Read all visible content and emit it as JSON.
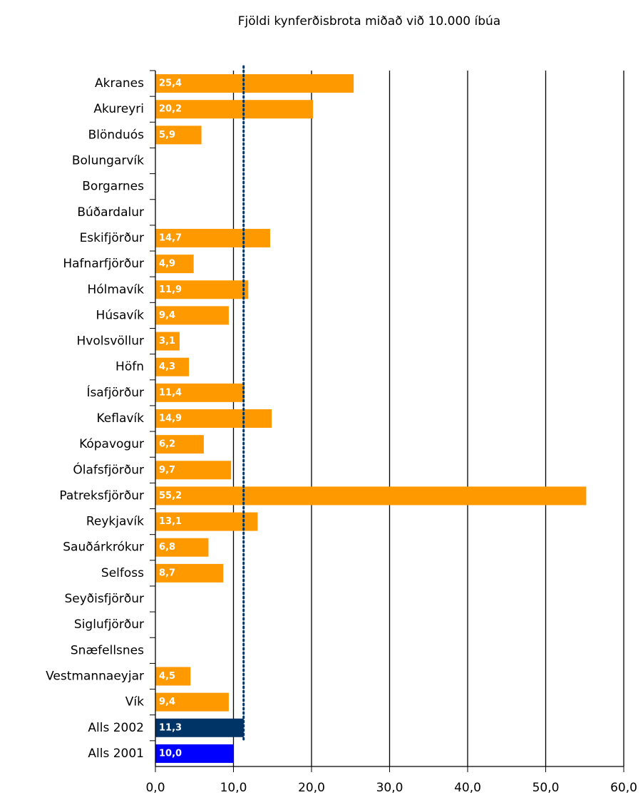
{
  "chart_data": {
    "type": "hbar",
    "title": "Fjöldi kynferðisbrota miðað við 10.000 íbúa",
    "categories": [
      "Akranes",
      "Akureyri",
      "Blönduós",
      "Bolungarvík",
      "Borgarnes",
      "Búðardalur",
      "Eskifjörður",
      "Hafnarfjörður",
      "Hólmavík",
      "Húsavík",
      "Hvolsvöllur",
      "Höfn",
      "Ísafjörður",
      "Keflavík",
      "Kópavogur",
      "Ólafsfjörður",
      "Patreksfjörður",
      "Reykjavík",
      "Sauðárkrókur",
      "Selfoss",
      "Seyðisfjörður",
      "Siglufjörður",
      "Snæfellsnes",
      "Vestmannaeyjar",
      "Vík",
      "Alls 2002",
      "Alls 2001"
    ],
    "values": [
      25.4,
      20.2,
      5.9,
      null,
      null,
      null,
      14.7,
      4.9,
      11.9,
      9.4,
      3.1,
      4.3,
      11.4,
      14.9,
      6.2,
      9.7,
      55.2,
      13.1,
      6.8,
      8.7,
      null,
      null,
      null,
      4.5,
      9.4,
      11.3,
      10.0
    ],
    "value_labels": [
      "25,4",
      "20,2",
      "5,9",
      null,
      null,
      null,
      "14,7",
      "4,9",
      "11,9",
      "9,4",
      "3,1",
      "4,3",
      "11,4",
      "14,9",
      "6,2",
      "9,7",
      "55,2",
      "13,1",
      "6,8",
      "8,7",
      null,
      null,
      null,
      "4,5",
      "9,4",
      "11,3",
      "10,0"
    ],
    "colors": [
      "#ff9900",
      "#ff9900",
      "#ff9900",
      "#ff9900",
      "#ff9900",
      "#ff9900",
      "#ff9900",
      "#ff9900",
      "#ff9900",
      "#ff9900",
      "#ff9900",
      "#ff9900",
      "#ff9900",
      "#ff9900",
      "#ff9900",
      "#ff9900",
      "#ff9900",
      "#ff9900",
      "#ff9900",
      "#ff9900",
      "#ff9900",
      "#ff9900",
      "#ff9900",
      "#ff9900",
      "#ff9900",
      "#003366",
      "#0000ff"
    ],
    "xlim": [
      0,
      60
    ],
    "xticks": [
      {
        "value": 0,
        "label": "0,0"
      },
      {
        "value": 10,
        "label": "10,0"
      },
      {
        "value": 20,
        "label": "20,0"
      },
      {
        "value": 30,
        "label": "30,0"
      },
      {
        "value": 40,
        "label": "40,0"
      },
      {
        "value": 50,
        "label": "50,0"
      },
      {
        "value": 60,
        "label": "60,0"
      }
    ],
    "grid": true,
    "reference_line": {
      "value": 11.3,
      "color": "#003366"
    }
  }
}
